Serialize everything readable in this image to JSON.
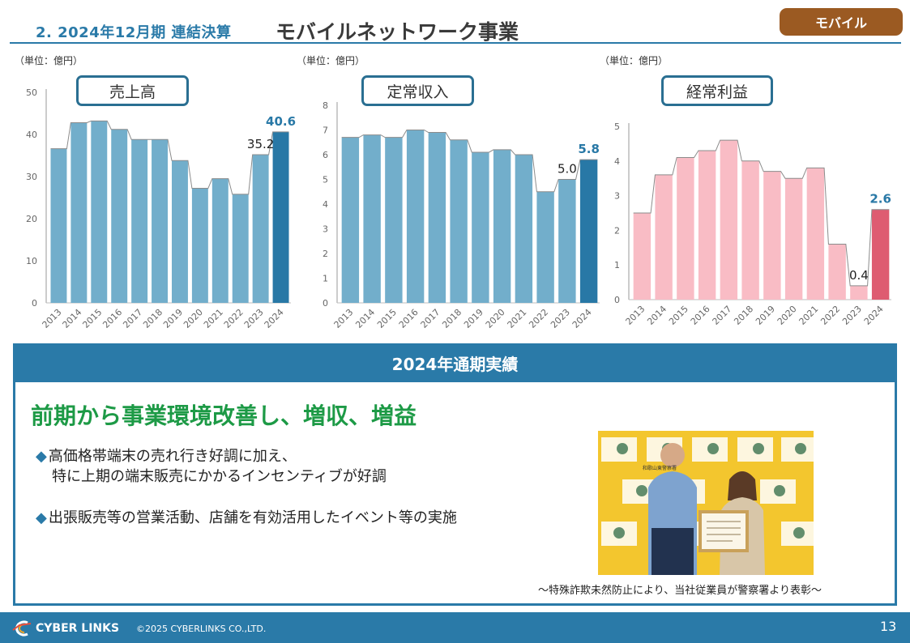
{
  "header": {
    "title_num": "2. 2024年12月期 連結決算",
    "title_sub": "モバイルネットワーク事業",
    "badge": "モバイル"
  },
  "charts": [
    {
      "unit": "（単位：億円）",
      "title": "売上高",
      "chart_data": {
        "type": "bar",
        "title": "売上高",
        "categories": [
          "2013",
          "2014",
          "2015",
          "2016",
          "2017",
          "2018",
          "2019",
          "2020",
          "2021",
          "2022",
          "2023",
          "2024"
        ],
        "values": [
          36.6,
          42.8,
          43.2,
          41.2,
          38.8,
          38.8,
          33.8,
          27.2,
          29.5,
          25.8,
          35.2,
          40.6
        ],
        "ylim": [
          0,
          50
        ],
        "yticks": [
          0,
          10,
          20,
          30,
          40,
          50
        ],
        "labels": [
          {
            "index": 10,
            "text": "35.2"
          },
          {
            "index": 11,
            "text": "40.6"
          }
        ],
        "colors": {
          "bar": "#72aecb",
          "highlight": "#2878a6",
          "label_highlight": "#2878a6"
        }
      }
    },
    {
      "unit": "（単位：億円）",
      "title": "定常収入",
      "chart_data": {
        "type": "bar",
        "title": "定常収入",
        "categories": [
          "2013",
          "2014",
          "2015",
          "2016",
          "2017",
          "2018",
          "2019",
          "2020",
          "2021",
          "2022",
          "2023",
          "2024"
        ],
        "values": [
          6.7,
          6.8,
          6.7,
          7.0,
          6.9,
          6.6,
          6.1,
          6.2,
          6.0,
          4.5,
          5.0,
          5.8
        ],
        "ylim": [
          0,
          8
        ],
        "yticks": [
          0,
          1,
          2,
          3,
          4,
          5,
          6,
          7,
          8
        ],
        "labels": [
          {
            "index": 10,
            "text": "5.0"
          },
          {
            "index": 11,
            "text": "5.8"
          }
        ],
        "colors": {
          "bar": "#72aecb",
          "highlight": "#2878a6",
          "label_highlight": "#2878a6"
        }
      }
    },
    {
      "unit": "（単位：億円）",
      "title": "経常利益",
      "chart_data": {
        "type": "bar",
        "title": "経常利益",
        "categories": [
          "2013",
          "2014",
          "2015",
          "2016",
          "2017",
          "2018",
          "2019",
          "2020",
          "2021",
          "2022",
          "2023",
          "2024"
        ],
        "values": [
          2.5,
          3.6,
          4.1,
          4.3,
          4.6,
          4.0,
          3.7,
          3.5,
          3.8,
          1.6,
          0.4,
          2.6
        ],
        "ylim": [
          0,
          5
        ],
        "yticks": [
          0,
          1,
          2,
          3,
          4,
          5
        ],
        "labels": [
          {
            "index": 10,
            "text": "0.4"
          },
          {
            "index": 11,
            "text": "2.6"
          }
        ],
        "colors": {
          "bar": "#f9bcc5",
          "highlight": "#de5c71",
          "label_highlight": "#2878a6"
        }
      }
    }
  ],
  "results": {
    "heading": "2024年通期実績",
    "headline": "前期から事業環境改善し、増収、増益",
    "bullet1_line1": "高価格帯端末の売れ行き好調に加え、",
    "bullet1_line2": "特に上期の端末販売にかかるインセンティブが好調",
    "bullet2": "出張販売等の営業活動、店舗を有効活用したイベント等の実施",
    "bullet_marker": "◆",
    "photo_caption": "～特殊詐欺未然防止により、当社従業員が警察署より表彰～",
    "photo_sign": "和歌山東警察署"
  },
  "footer": {
    "logo": "CYBER LINKS",
    "copyright": "©2025 CYBERLINKS CO.,LTD.",
    "page": "13"
  }
}
